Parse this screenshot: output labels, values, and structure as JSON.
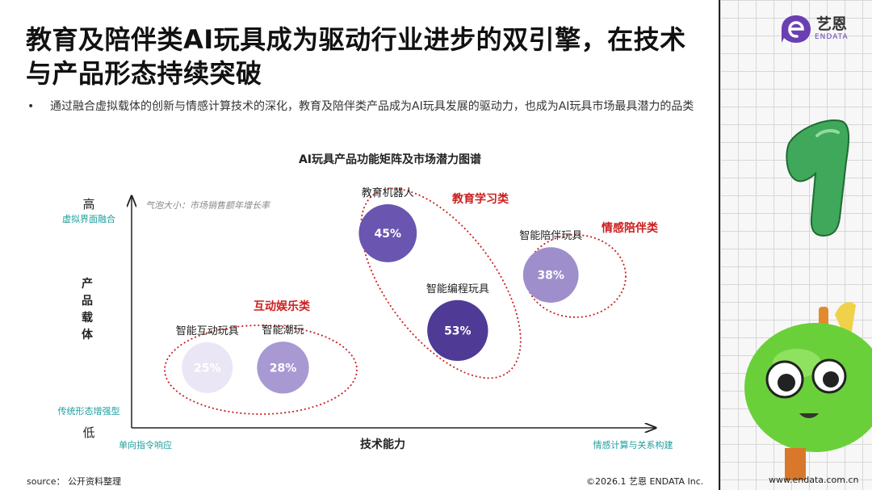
{
  "title": "教育及陪伴类AI玩具成为驱动行业进步的双引擎，在技术与产品形态持续突破",
  "bullet": {
    "marker": "•",
    "text": "通过融合虚拟载体的创新与情感计算技术的深化，教育及陪伴类产品成为AI玩具发展的驱动力，也成为AI玩具市场最具潜力的品类"
  },
  "logo": {
    "cn": "艺恩",
    "en": "ENDATA"
  },
  "chart_data": {
    "type": "scatter",
    "title": "AI玩具产品功能矩阵及市场潜力图谱",
    "xlabel": "技术能力",
    "ylabel": "产品载体",
    "x_low_label": "单向指令响应",
    "x_high_label": "情感计算与关系构建",
    "y_high": "高",
    "y_high_sub": "虚拟界面融合",
    "y_low": "低",
    "y_low_sub": "传统形态增强型",
    "bubble_note": "气泡大小：市场销售额年增长率",
    "points": [
      {
        "name": "智能互动玩具",
        "value": "25%",
        "growth": 25,
        "x": 1.3,
        "y": 1.3,
        "color": "#ebe6f5",
        "text_color": "#ffffff"
      },
      {
        "name": "智能潮玩",
        "value": "28%",
        "growth": 28,
        "x": 2.6,
        "y": 1.3,
        "color": "#a899d3",
        "text_color": "#ffffff"
      },
      {
        "name": "教育机器人",
        "value": "45%",
        "growth": 45,
        "x": 4.4,
        "y": 4.2,
        "color": "#6a55b0",
        "text_color": "#ffffff"
      },
      {
        "name": "智能编程玩具",
        "value": "53%",
        "growth": 53,
        "x": 5.6,
        "y": 2.1,
        "color": "#4f3a96",
        "text_color": "#ffffff"
      },
      {
        "name": "智能陪伴玩具",
        "value": "38%",
        "growth": 38,
        "x": 7.2,
        "y": 3.3,
        "color": "#9e8fcc",
        "text_color": "#ffffff"
      }
    ],
    "groups": [
      {
        "name": "互动娱乐类",
        "color": "#cc1f1f"
      },
      {
        "name": "教育学习类",
        "color": "#cc1f1f"
      },
      {
        "name": "情感陪伴类",
        "color": "#cc1f1f"
      }
    ],
    "axis_color": "#222222",
    "side_label_color": "#1e9e9e"
  },
  "footer": {
    "source": "source： 公开资料整理",
    "copyright": "©2026.1  艺恩 ENDATA Inc.",
    "url": "www.endata.com.cn"
  }
}
